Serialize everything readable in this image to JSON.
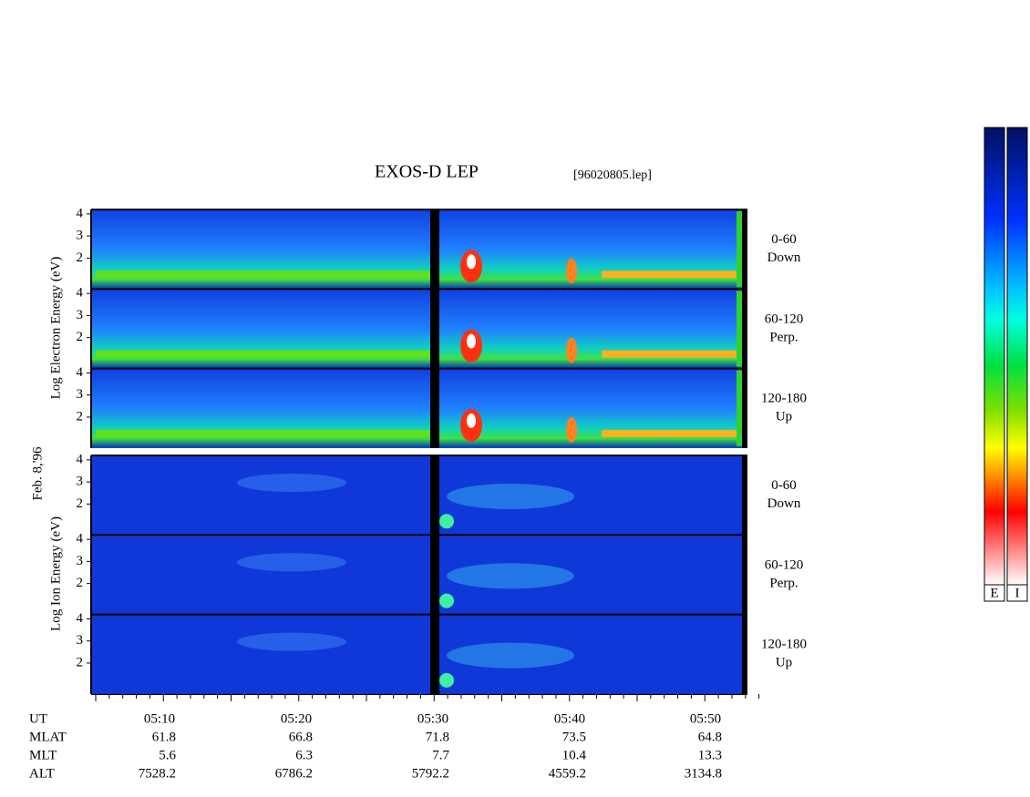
{
  "title": "EXOS-D LEP",
  "file": "[96020805.lep]",
  "date_label": "Feb. 8,'96",
  "energy_ticks": [
    4,
    3,
    2
  ],
  "electron": {
    "axis_label": "Log Electron Energy (eV)",
    "panels": [
      {
        "range": "0-60",
        "direction": "Down"
      },
      {
        "range": "60-120",
        "direction": "Perp."
      },
      {
        "range": "120-180",
        "direction": "Up"
      }
    ]
  },
  "ion": {
    "axis_label": "Log Ion Energy (eV)",
    "panels": [
      {
        "range": "0-60",
        "direction": "Down"
      },
      {
        "range": "60-120",
        "direction": "Perp."
      },
      {
        "range": "120-180",
        "direction": "Up"
      }
    ]
  },
  "ephemeris": {
    "row_labels": [
      "UT",
      "MLAT",
      "MLT",
      "ALT"
    ],
    "columns": [
      [
        "05:10",
        "61.8",
        "5.6",
        "7528.2"
      ],
      [
        "05:20",
        "66.8",
        "6.3",
        "6786.2"
      ],
      [
        "05:30",
        "71.8",
        "7.7",
        "5792.2"
      ],
      [
        "05:40",
        "73.5",
        "10.4",
        "4559.2"
      ],
      [
        "05:50",
        "64.8",
        "13.3",
        "3134.8"
      ]
    ]
  },
  "colorbar_labels": [
    "E",
    "I"
  ]
}
